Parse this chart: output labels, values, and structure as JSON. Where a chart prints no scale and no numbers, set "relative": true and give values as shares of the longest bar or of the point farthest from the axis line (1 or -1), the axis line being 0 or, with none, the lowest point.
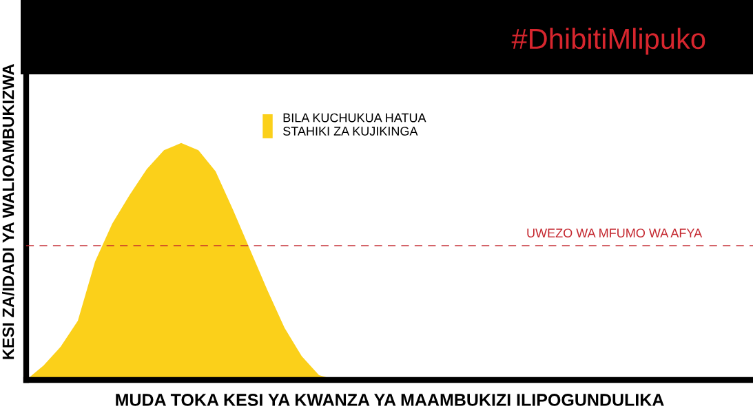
{
  "chart_data": {
    "type": "area",
    "relative": true,
    "title": "#DhibitiMlipuko",
    "xlabel": "MUDA TOKA KESI YA KWANZA YA MAAMBUKIZI ILIPOGUNDULIKA",
    "ylabel": "KESI ZA/IDADI YA WALIOAMBUKIZWA",
    "categories": [
      null,
      null,
      null,
      null,
      null,
      null,
      null,
      null,
      null,
      null,
      null,
      null,
      null,
      null,
      null,
      null,
      null,
      null,
      null,
      null,
      null,
      null,
      null,
      null,
      null,
      null,
      null,
      null,
      null,
      null,
      null,
      null,
      null,
      null,
      null,
      null,
      null,
      null,
      null,
      null,
      null,
      null,
      null
    ],
    "series": [
      {
        "name": "BILA KUCHUKUA HATUA\nSTAHIKI ZA KUJIKINGA",
        "color": "#fbd01a",
        "values": [
          0,
          0.06,
          0.14,
          0.25,
          0.5,
          0.66,
          0.78,
          0.89,
          0.97,
          1,
          0.97,
          0.88,
          0.72,
          0.55,
          0.38,
          0.22,
          0.1,
          0.02,
          0,
          0,
          0,
          0,
          0,
          0,
          0,
          0,
          0,
          0,
          0,
          0,
          0,
          0,
          0,
          0,
          0,
          0,
          0,
          0,
          0,
          0,
          0,
          0,
          0
        ]
      }
    ],
    "ref_lines": [
      {
        "axis": "y",
        "value": 0.567,
        "label": "UWEZO WA MFUMO WA AFYA",
        "color": "#c4262e",
        "line_style": "dashed"
      }
    ],
    "legend": "top",
    "grid": false,
    "tick_labels": false
  }
}
